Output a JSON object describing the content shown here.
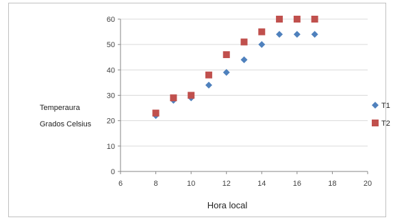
{
  "chart_data": {
    "type": "scatter",
    "title": "",
    "xlabel": "Hora  local",
    "ylabel_lines": [
      "Temperaura",
      "Grados Celsius"
    ],
    "xlim": [
      6,
      20
    ],
    "ylim": [
      0,
      60
    ],
    "x_ticks": [
      6,
      8,
      10,
      12,
      14,
      16,
      18,
      20
    ],
    "y_ticks": [
      0,
      10,
      20,
      30,
      40,
      50,
      60
    ],
    "grid": "horizontal",
    "legend_position": "right",
    "series": [
      {
        "name": "T1",
        "marker": "diamond",
        "color": "#4f81bd",
        "x": [
          8,
          9,
          10,
          11,
          12,
          13,
          14,
          15,
          16,
          17
        ],
        "y": [
          22,
          28,
          29,
          34,
          39,
          44,
          50,
          54,
          54,
          54
        ]
      },
      {
        "name": "T2",
        "marker": "square",
        "color": "#c0504d",
        "x": [
          8,
          9,
          10,
          11,
          12,
          13,
          14,
          15,
          16,
          17
        ],
        "y": [
          23,
          29,
          30,
          38,
          46,
          51,
          55,
          60,
          60,
          60
        ]
      }
    ]
  }
}
